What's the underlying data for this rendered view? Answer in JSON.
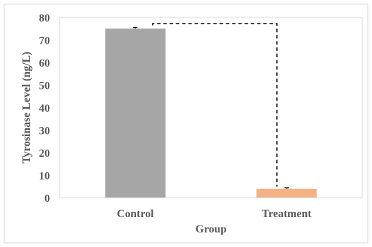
{
  "chart_data": {
    "type": "bar",
    "categories": [
      "Control",
      "Treatment"
    ],
    "values": [
      75,
      4
    ],
    "error": [
      0.5,
      0.4
    ],
    "bar_colors": [
      "#a6a6a6",
      "#f4b183"
    ],
    "xlabel": "Group",
    "ylabel": "Tyrosinase Level (ng/L)",
    "ylim": [
      0,
      80
    ],
    "yticks": [
      0,
      10,
      20,
      30,
      40,
      50,
      60,
      70,
      80
    ],
    "grid": false,
    "bracket": {
      "style": "dashed",
      "from": "Control",
      "to": "Treatment"
    }
  }
}
